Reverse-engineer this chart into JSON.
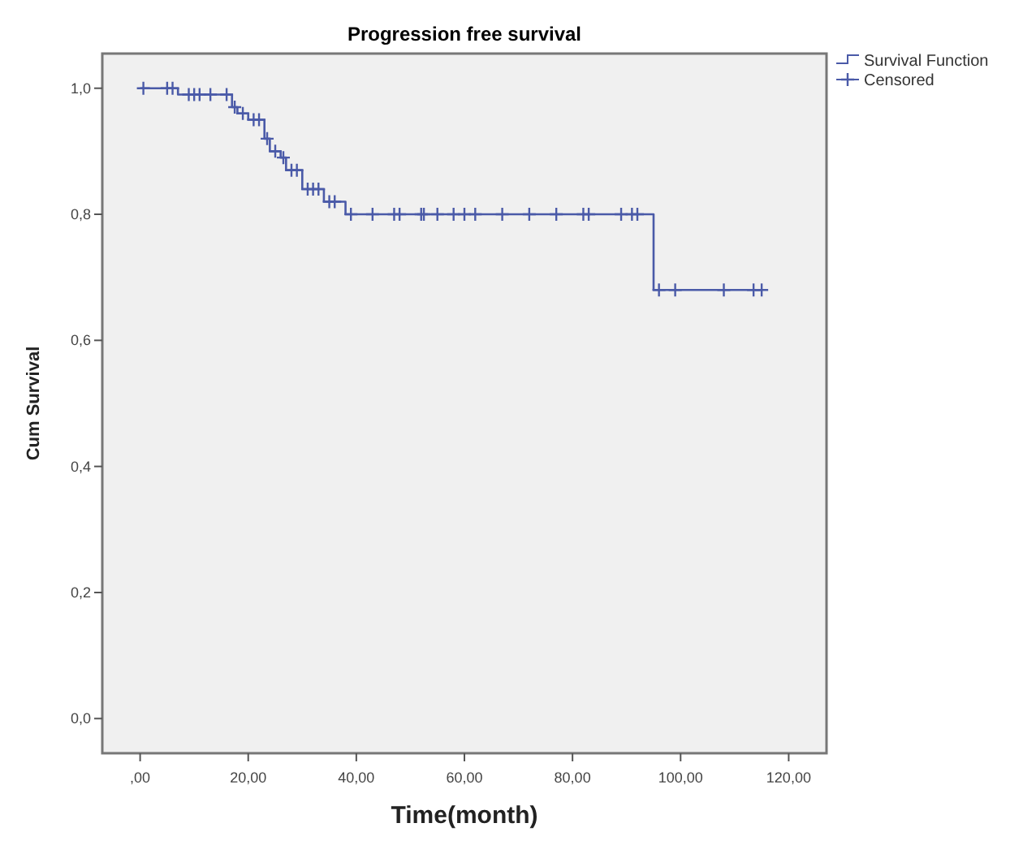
{
  "chart_data": {
    "type": "step",
    "title": "Progression free survival",
    "xlabel": "Time(month)",
    "ylabel": "Cum Survival",
    "xlim": [
      -7,
      127
    ],
    "xticks": [
      {
        "value": 0,
        "label": ",00"
      },
      {
        "value": 20,
        "label": "20,00"
      },
      {
        "value": 40,
        "label": "40,00"
      },
      {
        "value": 60,
        "label": "60,00"
      },
      {
        "value": 80,
        "label": "80,00"
      },
      {
        "value": 100,
        "label": "100,00"
      },
      {
        "value": 120,
        "label": "120,00"
      }
    ],
    "ylim": [
      -0.055,
      1.055
    ],
    "yticks": [
      {
        "value": 0,
        "label": "0,0"
      },
      {
        "value": 0.2,
        "label": "0,2"
      },
      {
        "value": 0.4,
        "label": "0,4"
      },
      {
        "value": 0.6,
        "label": "0,6"
      },
      {
        "value": 0.8,
        "label": "0,8"
      },
      {
        "value": 1,
        "label": "1,0"
      }
    ],
    "grid": false,
    "legend": "top right",
    "series": [
      {
        "name": "Survival Function",
        "color": "#4a5aa8",
        "marker": "none",
        "x": [
          0,
          7,
          17,
          18,
          20,
          23,
          24,
          26,
          27,
          30,
          34,
          38,
          95,
          115
        ],
        "values": [
          1,
          0.99,
          0.97,
          0.96,
          0.95,
          0.92,
          0.9,
          0.89,
          0.87,
          0.84,
          0.82,
          0.8,
          0.68,
          0.68
        ]
      },
      {
        "name": "Censored",
        "type": "scatter",
        "color": "#4a5aa8",
        "marker": "cross",
        "x": [
          0.6,
          5,
          6,
          9,
          10,
          11,
          13,
          16,
          17.5,
          19,
          21,
          22,
          23.5,
          25,
          26.5,
          28,
          29,
          31,
          32,
          33,
          35,
          36,
          39,
          43,
          47,
          48,
          52,
          52.5,
          55,
          58,
          60,
          62,
          67,
          72,
          77,
          82,
          83,
          89,
          91,
          92,
          96,
          99,
          108,
          113.5,
          115
        ],
        "values": [
          1,
          1,
          1,
          0.99,
          0.99,
          0.99,
          0.99,
          0.99,
          0.97,
          0.96,
          0.95,
          0.95,
          0.92,
          0.9,
          0.89,
          0.87,
          0.87,
          0.84,
          0.84,
          0.84,
          0.82,
          0.82,
          0.8,
          0.8,
          0.8,
          0.8,
          0.8,
          0.8,
          0.8,
          0.8,
          0.8,
          0.8,
          0.8,
          0.8,
          0.8,
          0.8,
          0.8,
          0.8,
          0.8,
          0.8,
          0.68,
          0.68,
          0.68,
          0.68,
          0.68
        ]
      }
    ]
  }
}
